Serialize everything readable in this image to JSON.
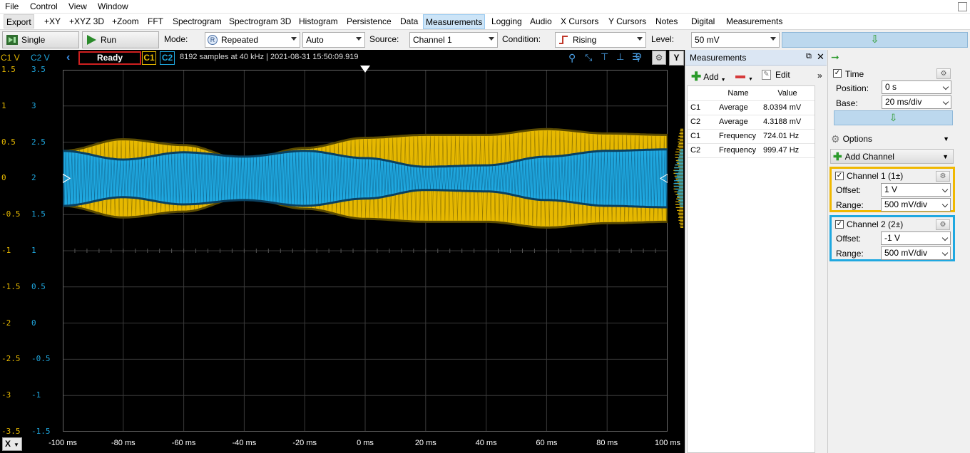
{
  "menu": [
    "File",
    "Control",
    "View",
    "Window"
  ],
  "tabs": [
    "Export",
    "+XY",
    "+XYZ 3D",
    "+Zoom",
    "FFT",
    "Spectrogram",
    "Spectrogram 3D",
    "Histogram",
    "Persistence",
    "Data",
    "Measurements",
    "Logging",
    "Audio",
    "X Cursors",
    "Y Cursors",
    "Notes",
    "Digital",
    "Measurements"
  ],
  "selected_tab": "Measurements",
  "toolbar": {
    "single": "Single",
    "run": "Run",
    "mode_label": "Mode:",
    "mode_value": "Repeated",
    "auto_value": "Auto",
    "source_label": "Source:",
    "source_value": "Channel 1",
    "condition_label": "Condition:",
    "condition_value": "Rising",
    "level_label": "Level:",
    "level_value": "50 mV"
  },
  "scope": {
    "c1_head": "C1 V",
    "c2_head": "C2 V",
    "status": "Ready",
    "ch1_tag": "C1",
    "ch2_tag": "C2",
    "info": "8192 samples at 40 kHz | 2021-08-31 15:50:09.919",
    "y_button": "Y",
    "x_button": "X",
    "c1_ticks": [
      "1.5",
      "1",
      "0.5",
      "0",
      "-0.5",
      "-1",
      "-1.5",
      "-2",
      "-2.5",
      "-3",
      "-3.5"
    ],
    "c2_ticks": [
      "3.5",
      "3",
      "2.5",
      "2",
      "1.5",
      "1",
      "0.5",
      "0",
      "-0.5",
      "-1",
      "-1.5"
    ],
    "x_ticks": [
      "-100 ms",
      "-80 ms",
      "-60 ms",
      "-40 ms",
      "-20 ms",
      "0 ms",
      "20 ms",
      "40 ms",
      "60 ms",
      "80 ms",
      "100 ms"
    ],
    "colors": {
      "ch1": "#e6b800",
      "ch2": "#1fa8e0"
    }
  },
  "chart_data": {
    "type": "line",
    "title": "",
    "xlabel": "",
    "ylabel": "",
    "xlim": [
      -100,
      100
    ],
    "ylim_c1": [
      -3.5,
      1.5
    ],
    "ylim_c2": [
      -1.5,
      3.5
    ],
    "grid": true,
    "series": [
      {
        "name": "C1",
        "axis": "C1 V",
        "center": 0,
        "envelope_ms": [
          -100,
          -80,
          -60,
          -40,
          -20,
          0,
          20,
          40,
          60,
          80,
          100
        ],
        "envelope_amplitude": [
          0.38,
          0.54,
          0.46,
          0.26,
          0.42,
          0.56,
          0.6,
          0.6,
          0.68,
          0.62,
          0.6
        ]
      },
      {
        "name": "C2",
        "axis": "C2 V",
        "center": 2,
        "envelope_ms": [
          -100,
          -80,
          -60,
          -40,
          -20,
          0,
          20,
          40,
          60,
          80,
          100
        ],
        "envelope_amplitude": [
          0.38,
          0.26,
          0.36,
          0.3,
          0.38,
          0.28,
          0.16,
          0.18,
          0.3,
          0.38,
          0.4
        ]
      }
    ]
  },
  "measurements": {
    "title": "Measurements",
    "add": "Add",
    "edit": "Edit",
    "col_name": "Name",
    "col_value": "Value",
    "rows": [
      {
        "ch": "C1",
        "name": "Average",
        "value": "8.0394 mV"
      },
      {
        "ch": "C2",
        "name": "Average",
        "value": "4.3188 mV"
      },
      {
        "ch": "C1",
        "name": "Frequency",
        "value": "724.01 Hz"
      },
      {
        "ch": "C2",
        "name": "Frequency",
        "value": "999.47 Hz"
      }
    ]
  },
  "right_panel": {
    "time_label": "Time",
    "position_label": "Position:",
    "position_value": "0 s",
    "base_label": "Base:",
    "base_value": "20 ms/div",
    "options_label": "Options",
    "add_channel_label": "Add Channel",
    "ch1_label": "Channel 1 (1±)",
    "ch1_offset_label": "Offset:",
    "ch1_offset_value": "1 V",
    "ch1_range_label": "Range:",
    "ch1_range_value": "500 mV/div",
    "ch2_label": "Channel 2 (2±)",
    "ch2_offset_label": "Offset:",
    "ch2_offset_value": "-1 V",
    "ch2_range_label": "Range:",
    "ch2_range_value": "500 mV/div"
  }
}
